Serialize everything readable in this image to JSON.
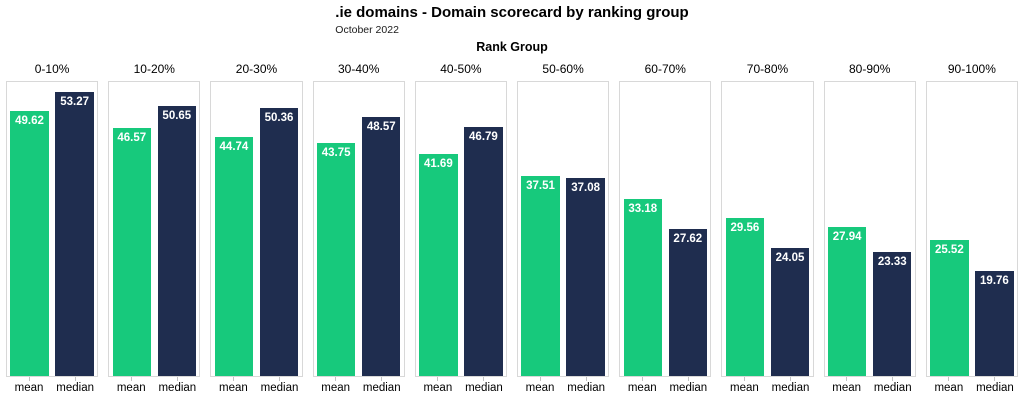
{
  "header": {
    "title": ".ie domains - Domain scorecard by ranking group",
    "subtitle": "October 2022",
    "facet_axis_title": "Rank Group"
  },
  "chart_data": {
    "type": "bar",
    "title": ".ie domains - Domain scorecard by ranking group",
    "subtitle": "October 2022",
    "facet_axis_title": "Rank Group",
    "facets": [
      "0-10%",
      "10-20%",
      "20-30%",
      "30-40%",
      "40-50%",
      "50-60%",
      "60-70%",
      "70-80%",
      "80-90%",
      "90-100%"
    ],
    "categories": [
      "mean",
      "median"
    ],
    "series": [
      {
        "name": "mean",
        "color": "#17c97c",
        "values": [
          49.62,
          46.57,
          44.74,
          43.75,
          41.69,
          37.51,
          33.18,
          29.56,
          27.94,
          25.52
        ]
      },
      {
        "name": "median",
        "color": "#1f2d4f",
        "values": [
          53.27,
          50.65,
          50.36,
          48.57,
          46.79,
          37.08,
          27.62,
          24.05,
          23.33,
          19.76
        ]
      }
    ],
    "ylim": [
      0,
      55.2
    ],
    "value_labels": "white, two decimals, inside top of each bar",
    "legend": "none",
    "grid": false,
    "panel_border_color": "#d8d8d8"
  }
}
